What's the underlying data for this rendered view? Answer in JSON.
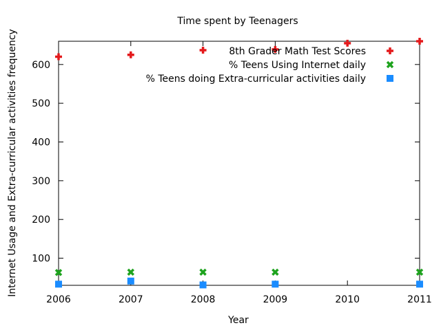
{
  "chart_data": {
    "type": "scatter",
    "title": "Time spent by Teenagers",
    "xlabel": "Year",
    "ylabel": "Internet Usage and Extra-curricular activities frequency",
    "xlim": [
      2006,
      2011
    ],
    "ylim": [
      30,
      660
    ],
    "xticks": [
      2006,
      2007,
      2008,
      2009,
      2010,
      2011
    ],
    "yticks": [
      100,
      200,
      300,
      400,
      500,
      600
    ],
    "grid": false,
    "legend_position": "top-right",
    "series": [
      {
        "name": "8th Grader Math Test Scores",
        "marker": "plus",
        "color": "#e41a1c",
        "points": [
          [
            2006,
            620
          ],
          [
            2007,
            625
          ],
          [
            2008,
            637
          ],
          [
            2009,
            639
          ],
          [
            2010,
            655
          ],
          [
            2011,
            660
          ]
        ]
      },
      {
        "name": "% Teens Using Internet daily",
        "marker": "cross",
        "color": "#1ea31e",
        "points": [
          [
            2006,
            63
          ],
          [
            2007,
            64
          ],
          [
            2008,
            64
          ],
          [
            2009,
            64
          ],
          [
            2011,
            64
          ]
        ]
      },
      {
        "name": "% Teens doing Extra-curricular activities daily",
        "marker": "square",
        "color": "#1a8cff",
        "points": [
          [
            2006,
            33
          ],
          [
            2007,
            41
          ],
          [
            2008,
            31
          ],
          [
            2009,
            33
          ],
          [
            2011,
            33
          ]
        ]
      }
    ]
  }
}
